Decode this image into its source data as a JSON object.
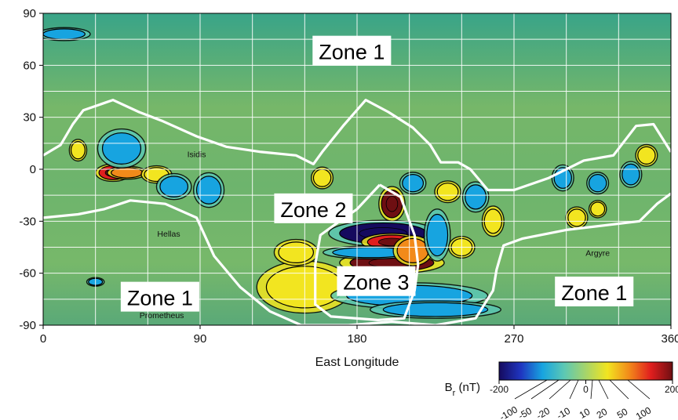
{
  "chart_data": {
    "type": "heatmap",
    "xlabel": "East Longitude",
    "xlim": [
      0,
      360
    ],
    "ylim": [
      -90,
      90
    ],
    "x_ticks": [
      0,
      90,
      180,
      270,
      360
    ],
    "y_ticks": [
      90,
      60,
      30,
      0,
      -30,
      -60,
      -90
    ],
    "x_gridlines": [
      0,
      30,
      60,
      90,
      120,
      150,
      180,
      210,
      240,
      270,
      300,
      330,
      360
    ],
    "y_gridlines": [
      -90,
      -75,
      -60,
      -45,
      -30,
      -15,
      0,
      15,
      30,
      45,
      60,
      75,
      90
    ],
    "grid": true,
    "colorbar": {
      "title_main": "B",
      "title_sub": "r",
      "title_unit": " (nT)",
      "upper_ticks": [
        -200,
        0,
        200
      ],
      "lower_ticks": [
        -100,
        -50,
        -20,
        -10,
        10,
        20,
        50,
        100
      ],
      "colors": [
        "#150a5e",
        "#1f35c0",
        "#17a4e0",
        "#5cc8b4",
        "#a6d46a",
        "#f2e520",
        "#f28a1a",
        "#e01e1e",
        "#6e0f12"
      ]
    },
    "place_labels": [
      {
        "text": "Isidis",
        "lon": 88,
        "lat": 7
      },
      {
        "text": "Hellas",
        "lon": 72,
        "lat": -39
      },
      {
        "text": "Argyre",
        "lon": 318,
        "lat": -50
      },
      {
        "text": "Prometheus",
        "lon": 68,
        "lat": -86
      }
    ],
    "zones": [
      {
        "text": "Zone 1",
        "lon": 177,
        "lat": 68
      },
      {
        "text": "Zone 2",
        "lon": 155,
        "lat": -23
      },
      {
        "text": "Zone 3",
        "lon": 191,
        "lat": -65
      },
      {
        "text": "Zone 1",
        "lon": 67,
        "lat": -74
      },
      {
        "text": "Zone 1",
        "lon": 316,
        "lat": -71
      }
    ],
    "anomalies": [
      {
        "lon": 40,
        "lat": -2,
        "rx": 8,
        "ry": 4,
        "value": 120
      },
      {
        "lon": 48,
        "lat": -2,
        "rx": 9,
        "ry": 3,
        "value": 60
      },
      {
        "lon": 65,
        "lat": -3,
        "rx": 7,
        "ry": 4,
        "value": 30
      },
      {
        "lon": 20,
        "lat": 11,
        "rx": 4,
        "ry": 5,
        "value": 25
      },
      {
        "lon": 45,
        "lat": 12,
        "rx": 11,
        "ry": 9,
        "value": -20
      },
      {
        "lon": 75,
        "lat": -10,
        "rx": 8,
        "ry": 6,
        "value": -30
      },
      {
        "lon": 95,
        "lat": -12,
        "rx": 7,
        "ry": 8,
        "value": -20
      },
      {
        "lon": 150,
        "lat": -68,
        "rx": 22,
        "ry": 12,
        "value": 30
      },
      {
        "lon": 145,
        "lat": -48,
        "rx": 10,
        "ry": 6,
        "value": 25
      },
      {
        "lon": 160,
        "lat": -5,
        "rx": 5,
        "ry": 5,
        "value": 20
      },
      {
        "lon": 195,
        "lat": -37,
        "rx": 25,
        "ry": 6,
        "value": -150
      },
      {
        "lon": 200,
        "lat": -42,
        "rx": 14,
        "ry": 4,
        "value": 100
      },
      {
        "lon": 200,
        "lat": -54,
        "rx": 24,
        "ry": 5,
        "value": 180
      },
      {
        "lon": 188,
        "lat": -48,
        "rx": 22,
        "ry": 3,
        "value": -60
      },
      {
        "lon": 210,
        "lat": -73,
        "rx": 36,
        "ry": 6,
        "value": -70
      },
      {
        "lon": 225,
        "lat": -81,
        "rx": 30,
        "ry": 4,
        "value": -40
      },
      {
        "lon": 200,
        "lat": -20,
        "rx": 6,
        "ry": 8,
        "value": 150
      },
      {
        "lon": 212,
        "lat": -47,
        "rx": 9,
        "ry": 7,
        "value": 40
      },
      {
        "lon": 226,
        "lat": -38,
        "rx": 6,
        "ry": 12,
        "value": -40
      },
      {
        "lon": 212,
        "lat": -8,
        "rx": 6,
        "ry": 5,
        "value": -25
      },
      {
        "lon": 232,
        "lat": -13,
        "rx": 6,
        "ry": 5,
        "value": 25
      },
      {
        "lon": 248,
        "lat": -16,
        "rx": 6,
        "ry": 7,
        "value": -30
      },
      {
        "lon": 258,
        "lat": -30,
        "rx": 5,
        "ry": 7,
        "value": 25
      },
      {
        "lon": 240,
        "lat": -45,
        "rx": 6,
        "ry": 5,
        "value": 20
      },
      {
        "lon": 298,
        "lat": -5,
        "rx": 5,
        "ry": 6,
        "value": -30
      },
      {
        "lon": 306,
        "lat": -28,
        "rx": 5,
        "ry": 5,
        "value": 25
      },
      {
        "lon": 318,
        "lat": -23,
        "rx": 4,
        "ry": 4,
        "value": 20
      },
      {
        "lon": 318,
        "lat": -8,
        "rx": 5,
        "ry": 5,
        "value": -25
      },
      {
        "lon": 346,
        "lat": 8,
        "rx": 5,
        "ry": 5,
        "value": 30
      },
      {
        "lon": 337,
        "lat": -3,
        "rx": 5,
        "ry": 6,
        "value": -25
      },
      {
        "lon": 30,
        "lat": -65,
        "rx": 4,
        "ry": 2,
        "value": -10
      },
      {
        "lon": 12,
        "lat": 78,
        "rx": 12,
        "ry": 3,
        "value": -10
      }
    ],
    "zone_boundaries": [
      [
        [
          0,
          8
        ],
        [
          10,
          14
        ],
        [
          17,
          26
        ],
        [
          23,
          34
        ],
        [
          40,
          40
        ],
        [
          55,
          33
        ],
        [
          68,
          28
        ],
        [
          88,
          19
        ],
        [
          105,
          13
        ],
        [
          125,
          10
        ],
        [
          145,
          8
        ],
        [
          155,
          3
        ],
        [
          160,
          10
        ],
        [
          172,
          25
        ],
        [
          185,
          40
        ],
        [
          198,
          33
        ],
        [
          212,
          24
        ],
        [
          222,
          14
        ],
        [
          228,
          4
        ],
        [
          238,
          4
        ],
        [
          245,
          0
        ],
        [
          255,
          -12
        ],
        [
          270,
          -12
        ],
        [
          290,
          -5
        ],
        [
          310,
          5
        ],
        [
          327,
          8
        ],
        [
          340,
          25
        ],
        [
          350,
          26
        ],
        [
          360,
          10
        ]
      ],
      [
        [
          0,
          -28
        ],
        [
          20,
          -26
        ],
        [
          35,
          -23
        ],
        [
          50,
          -18
        ],
        [
          70,
          -20
        ],
        [
          88,
          -28
        ],
        [
          98,
          -50
        ],
        [
          113,
          -68
        ],
        [
          130,
          -82
        ],
        [
          148,
          -90
        ],
        [
          175,
          -90
        ],
        [
          200,
          -88
        ],
        [
          225,
          -90
        ],
        [
          248,
          -86
        ],
        [
          258,
          -70
        ],
        [
          260,
          -58
        ],
        [
          264,
          -44
        ],
        [
          275,
          -40
        ],
        [
          300,
          -35
        ],
        [
          325,
          -32
        ],
        [
          342,
          -30
        ],
        [
          352,
          -20
        ],
        [
          360,
          -14
        ]
      ],
      [
        [
          193,
          -9
        ],
        [
          205,
          -16
        ],
        [
          213,
          -38
        ],
        [
          215,
          -55
        ],
        [
          213,
          -70
        ],
        [
          207,
          -86
        ],
        [
          192,
          -87
        ],
        [
          165,
          -85
        ],
        [
          156,
          -78
        ],
        [
          156,
          -55
        ],
        [
          159,
          -38
        ],
        [
          170,
          -30
        ],
        [
          180,
          -23
        ],
        [
          193,
          -9
        ]
      ]
    ]
  }
}
